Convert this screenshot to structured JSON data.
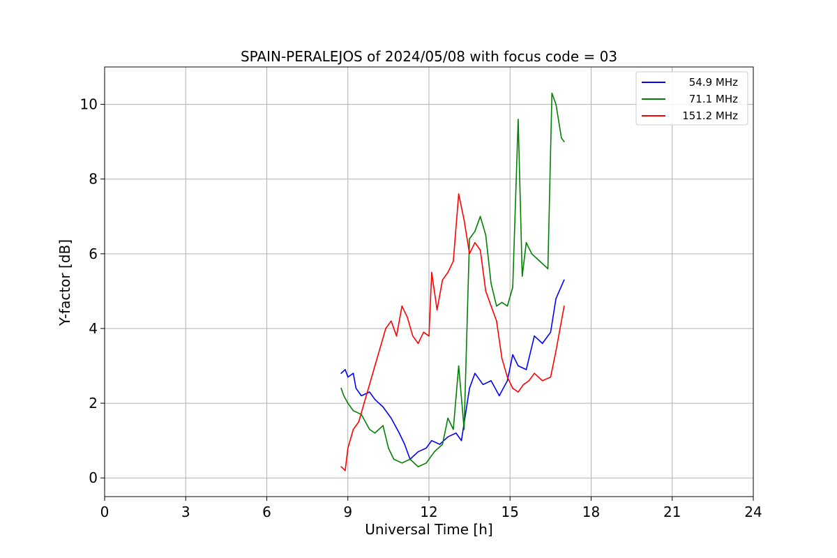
{
  "chart_data": {
    "type": "line",
    "title": "SPAIN-PERALEJOS of 2024/05/08 with focus code = 03",
    "xlabel": "Universal Time [h]",
    "ylabel": "Y-factor [dB]",
    "xlim": [
      0,
      24
    ],
    "ylim": [
      -0.5,
      11
    ],
    "xticks": [
      "0",
      "3",
      "6",
      "9",
      "12",
      "15",
      "18",
      "21",
      "24"
    ],
    "yticks": [
      "0",
      "2",
      "4",
      "6",
      "8",
      "10"
    ],
    "grid": true,
    "legend_position": "top-right",
    "series": [
      {
        "name": "54.9 MHz",
        "color": "#0000ff",
        "x": [
          8.75,
          8.9,
          9.0,
          9.2,
          9.3,
          9.5,
          9.8,
          10.0,
          10.3,
          10.6,
          10.9,
          11.1,
          11.3,
          11.6,
          11.9,
          12.1,
          12.4,
          12.7,
          13.0,
          13.2,
          13.5,
          13.7,
          14.0,
          14.3,
          14.6,
          14.9,
          15.1,
          15.3,
          15.6,
          15.9,
          16.2,
          16.5,
          16.7,
          17.0
        ],
        "y": [
          2.8,
          2.9,
          2.7,
          2.8,
          2.4,
          2.2,
          2.3,
          2.1,
          1.9,
          1.6,
          1.2,
          0.9,
          0.5,
          0.7,
          0.8,
          1.0,
          0.9,
          1.1,
          1.2,
          1.0,
          2.4,
          2.8,
          2.5,
          2.6,
          2.2,
          2.6,
          3.3,
          3.0,
          2.9,
          3.8,
          3.6,
          3.9,
          4.8,
          5.3
        ]
      },
      {
        "name": "71.1 MHz",
        "color": "#008000",
        "x": [
          8.75,
          8.85,
          9.0,
          9.2,
          9.5,
          9.8,
          10.0,
          10.3,
          10.5,
          10.7,
          11.0,
          11.3,
          11.6,
          11.9,
          12.2,
          12.5,
          12.7,
          12.9,
          13.1,
          13.3,
          13.5,
          13.7,
          13.9,
          14.1,
          14.3,
          14.5,
          14.7,
          14.9,
          15.1,
          15.3,
          15.45,
          15.6,
          15.8,
          16.1,
          16.4,
          16.55,
          16.7,
          16.9,
          17.0
        ],
        "y": [
          2.4,
          2.2,
          2.0,
          1.8,
          1.7,
          1.3,
          1.2,
          1.4,
          0.8,
          0.5,
          0.4,
          0.5,
          0.3,
          0.4,
          0.7,
          0.9,
          1.6,
          1.3,
          3.0,
          1.3,
          6.4,
          6.6,
          7.0,
          6.5,
          5.2,
          4.6,
          4.7,
          4.6,
          5.1,
          9.6,
          5.4,
          6.3,
          6.0,
          5.8,
          5.6,
          10.3,
          10.0,
          9.1,
          9.0
        ]
      },
      {
        "name": "151.2 MHz",
        "color": "#ff0000",
        "x": [
          8.75,
          8.9,
          9.0,
          9.2,
          9.4,
          9.6,
          9.8,
          10.0,
          10.2,
          10.4,
          10.6,
          10.8,
          11.0,
          11.2,
          11.4,
          11.6,
          11.8,
          12.0,
          12.1,
          12.3,
          12.5,
          12.7,
          12.9,
          13.1,
          13.3,
          13.5,
          13.7,
          13.9,
          14.1,
          14.3,
          14.5,
          14.7,
          14.9,
          15.1,
          15.3,
          15.5,
          15.7,
          15.9,
          16.2,
          16.5,
          16.7,
          17.0
        ],
        "y": [
          0.3,
          0.2,
          0.8,
          1.3,
          1.5,
          2.0,
          2.5,
          3.0,
          3.5,
          4.0,
          4.2,
          3.8,
          4.6,
          4.3,
          3.8,
          3.6,
          3.9,
          3.8,
          5.5,
          4.5,
          5.3,
          5.5,
          5.8,
          7.6,
          6.9,
          6.0,
          6.3,
          6.1,
          5.0,
          4.6,
          4.2,
          3.2,
          2.7,
          2.4,
          2.3,
          2.5,
          2.6,
          2.8,
          2.6,
          2.7,
          3.4,
          4.6
        ]
      }
    ]
  }
}
